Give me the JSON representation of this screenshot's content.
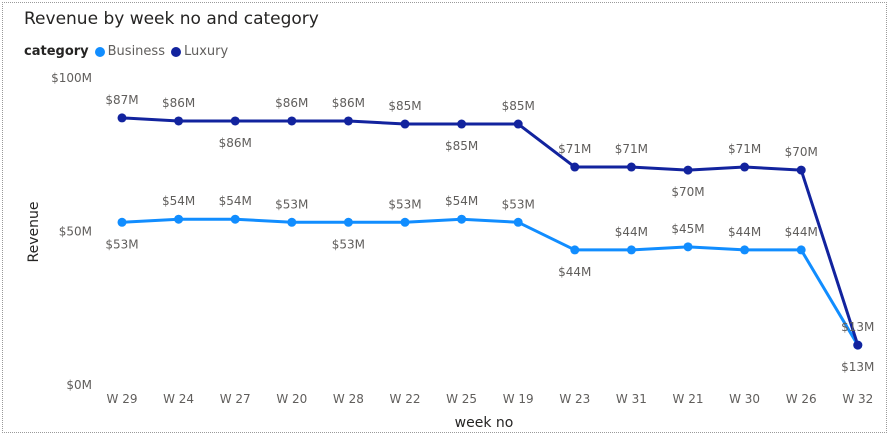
{
  "chart_data": {
    "type": "line",
    "title": "Revenue by week no and category",
    "legend_title": "category",
    "xlabel": "week no",
    "ylabel": "Revenue",
    "ylim": [
      0,
      100
    ],
    "y_ticks": [
      0,
      50,
      100
    ],
    "y_tick_labels": [
      "$0M",
      "$50M",
      "$100M"
    ],
    "grid": false,
    "legend_position": "top-left",
    "categories": [
      "W 29",
      "W 24",
      "W 27",
      "W 20",
      "W 28",
      "W 22",
      "W 25",
      "W 19",
      "W 23",
      "W 31",
      "W 21",
      "W 30",
      "W 26",
      "W 32"
    ],
    "series": [
      {
        "name": "Business",
        "color": "#118DFF",
        "values": [
          53,
          54,
          54,
          53,
          53,
          53,
          54,
          53,
          44,
          44,
          45,
          44,
          44,
          13
        ],
        "labels": [
          "$53M",
          "$54M",
          "$54M",
          "$53M",
          "$53M",
          "$53M",
          "$54M",
          "$53M",
          "$44M",
          "$44M",
          "$45M",
          "$44M",
          "$44M",
          "$13M"
        ]
      },
      {
        "name": "Luxury",
        "color": "#12239E",
        "values": [
          87,
          86,
          86,
          86,
          86,
          85,
          85,
          85,
          71,
          71,
          70,
          71,
          70,
          13
        ],
        "labels": [
          "$87M",
          "$86M",
          "$86M",
          "$86M",
          "$86M",
          "$85M",
          "$85M",
          "$85M",
          "$71M",
          "$71M",
          "$70M",
          "$71M",
          "$70M",
          "$13M"
        ]
      }
    ]
  }
}
